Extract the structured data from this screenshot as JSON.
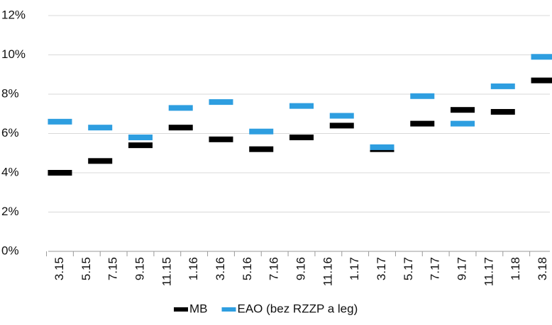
{
  "chart_data": {
    "type": "dash",
    "categories": [
      "3.15",
      null,
      "5.15",
      null,
      "7.15",
      null,
      "9.15",
      null,
      "11.15",
      null,
      "1.16",
      null,
      "3.16",
      null,
      "5.16",
      null,
      "7.16",
      null,
      "9.16",
      null,
      "11.16",
      null,
      "1.17",
      null,
      "3.17",
      null,
      "5.17",
      null,
      "7.17",
      null,
      "9.17",
      null,
      "11.17",
      null,
      "1.18",
      null,
      "3.18"
    ],
    "series": [
      {
        "name": "MB",
        "color": "#000000",
        "values": [
          4.0,
          null,
          null,
          4.6,
          null,
          null,
          5.4,
          null,
          null,
          6.3,
          null,
          null,
          5.7,
          null,
          null,
          5.2,
          null,
          null,
          5.8,
          null,
          null,
          6.4,
          null,
          null,
          5.2,
          null,
          null,
          6.5,
          null,
          null,
          7.2,
          null,
          null,
          7.1,
          null,
          null,
          8.7
        ]
      },
      {
        "name": "EAO (bez RZZP a leg)",
        "color": "#2e9ee0",
        "values": [
          6.6,
          null,
          null,
          6.3,
          null,
          null,
          5.8,
          null,
          null,
          7.3,
          null,
          null,
          7.6,
          null,
          null,
          6.1,
          null,
          null,
          7.4,
          null,
          null,
          6.9,
          null,
          null,
          5.3,
          null,
          null,
          7.9,
          null,
          null,
          6.5,
          null,
          null,
          8.4,
          null,
          null,
          9.9
        ]
      }
    ],
    "ylim": [
      0,
      12
    ],
    "yticks": [
      {
        "value": 0,
        "label": "0%"
      },
      {
        "value": 2,
        "label": "2%"
      },
      {
        "value": 4,
        "label": "4%"
      },
      {
        "value": 6,
        "label": "6%"
      },
      {
        "value": 8,
        "label": "8%"
      },
      {
        "value": 10,
        "label": "10%"
      },
      {
        "value": 12,
        "label": "12%"
      }
    ],
    "grid": true,
    "legend": "bottom"
  }
}
